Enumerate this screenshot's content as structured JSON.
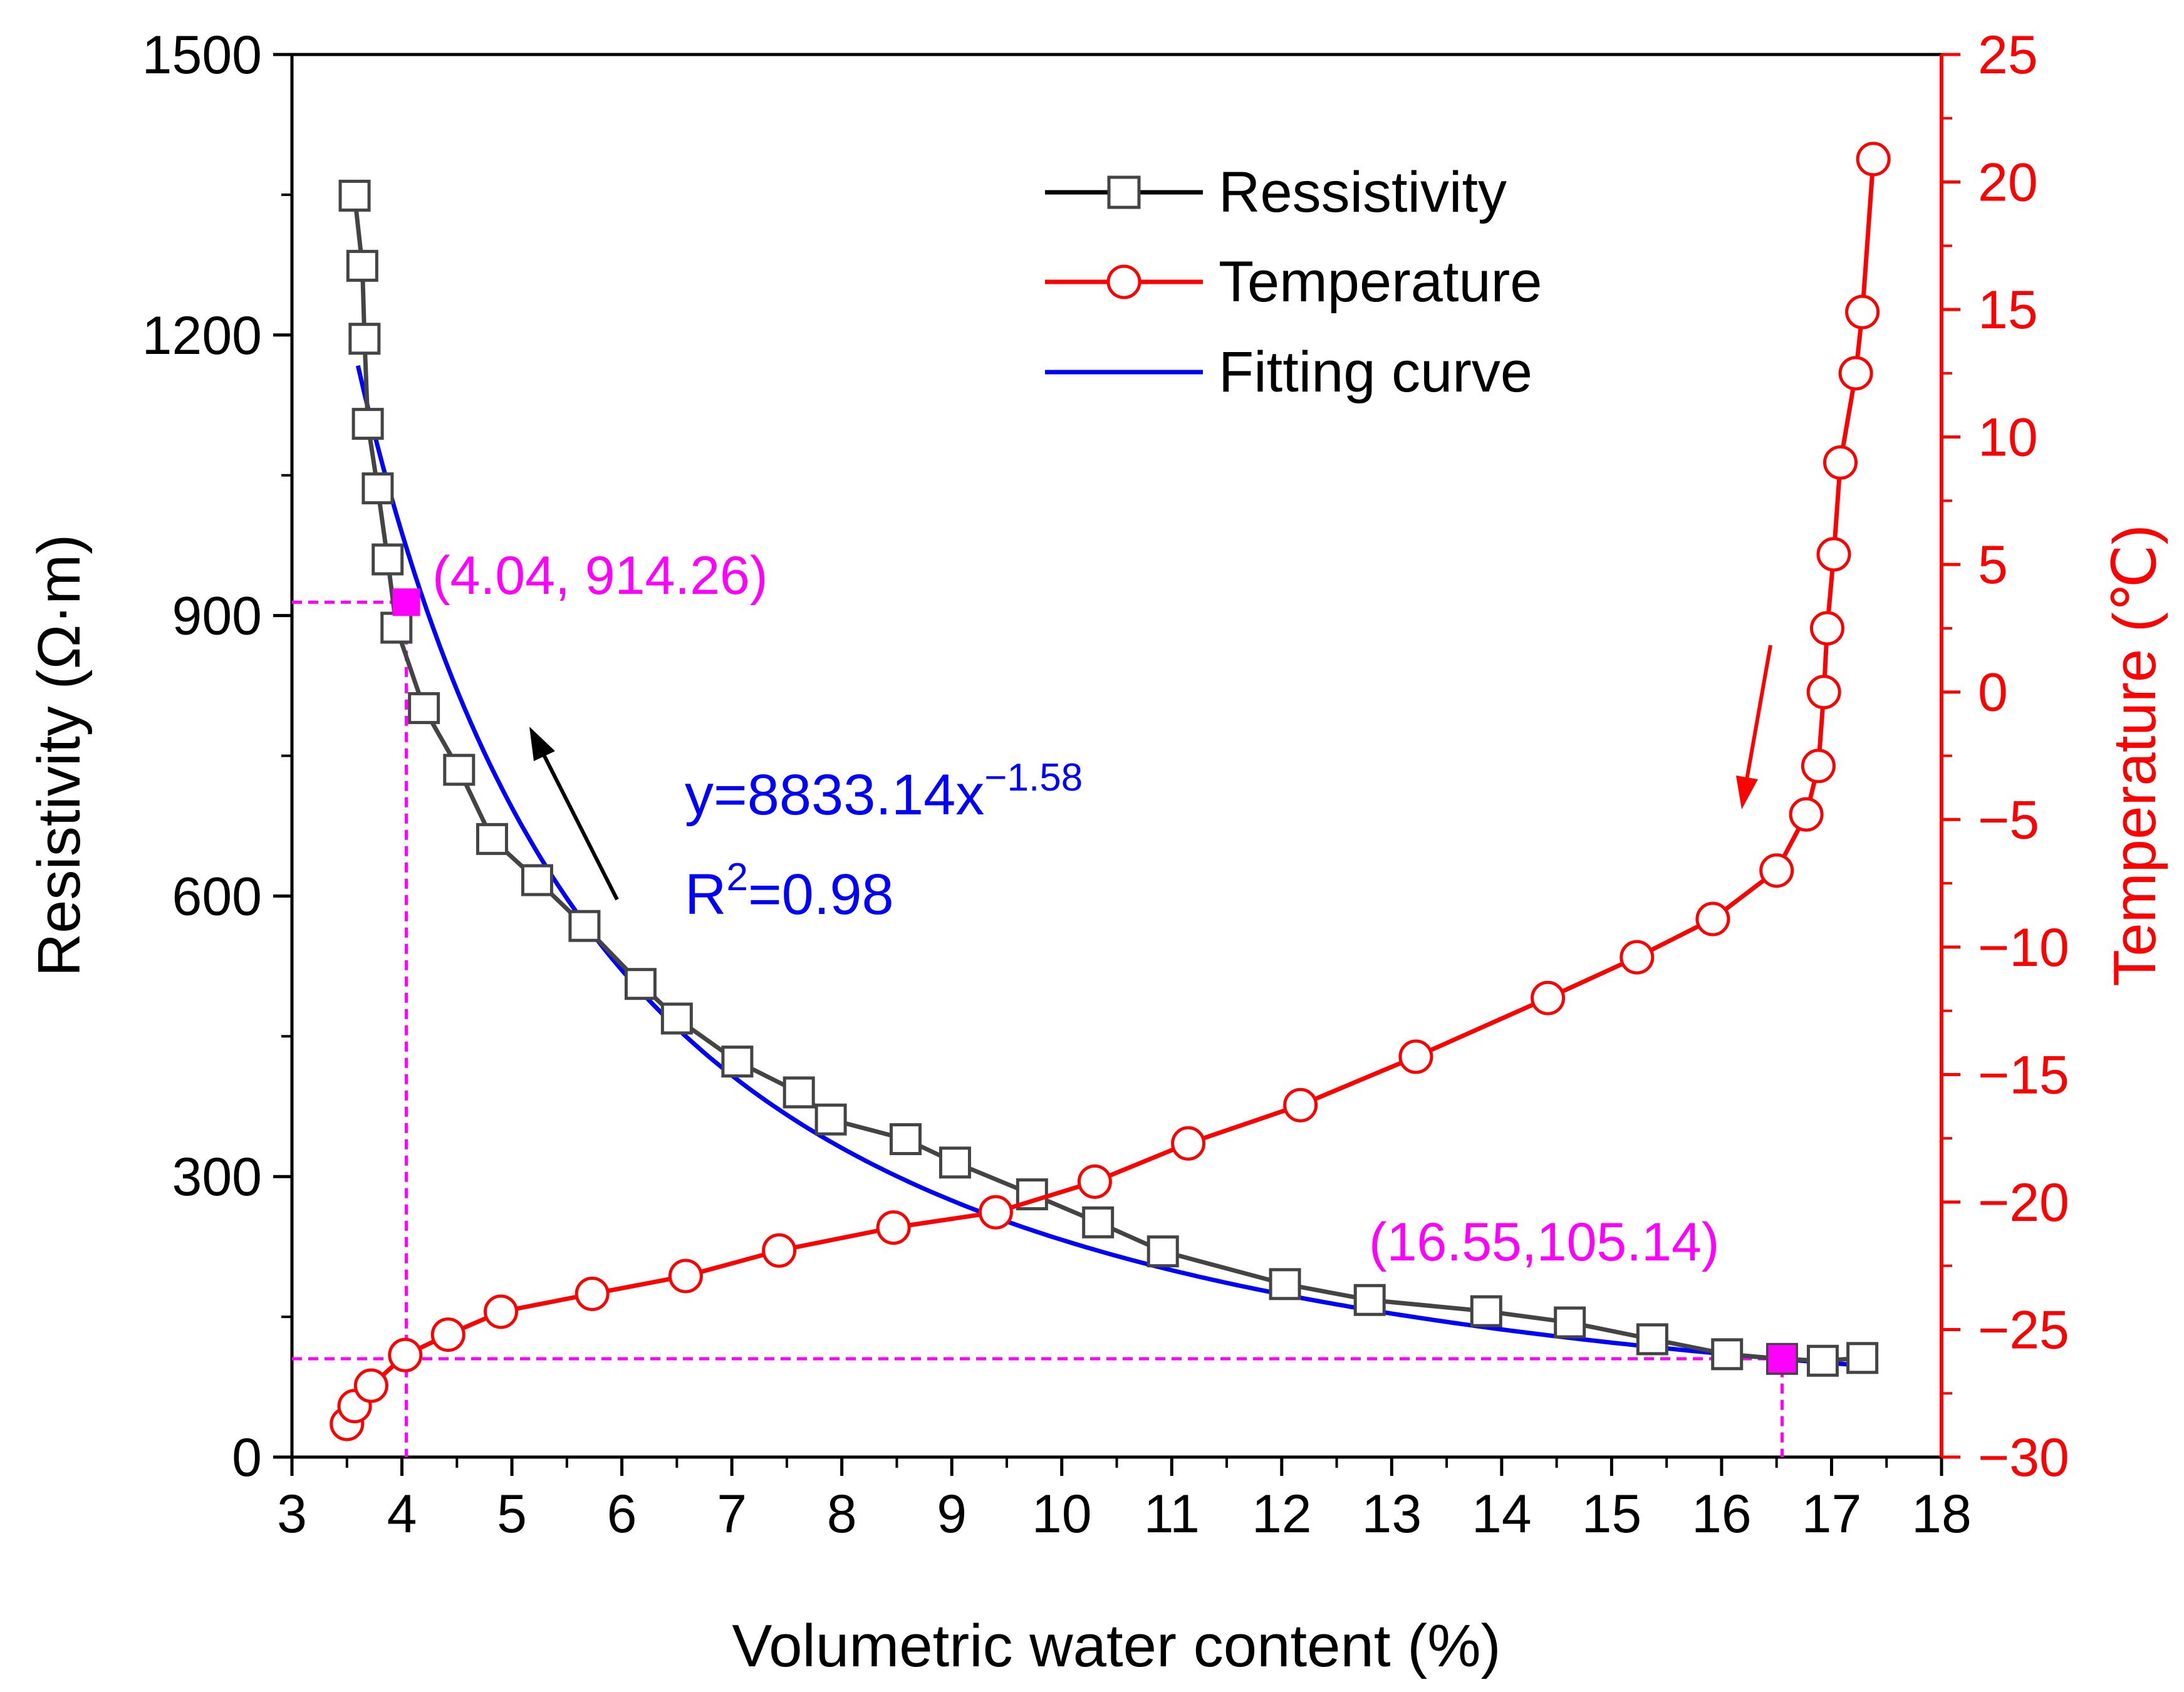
{
  "chart_data": {
    "type": "line",
    "xlabel": "Volumetric water content (%)",
    "ylabel_left": "Resistivity (Ω·m)",
    "ylabel_right": "Temperature (℃)",
    "xlim": [
      3,
      18
    ],
    "ylim_left": [
      0,
      1500
    ],
    "ylim_right": [
      -30,
      25
    ],
    "x_ticks": [
      "3",
      "4",
      "5",
      "6",
      "7",
      "8",
      "9",
      "10",
      "11",
      "12",
      "13",
      "14",
      "15",
      "16",
      "17",
      "18"
    ],
    "y_left_ticks": [
      "0",
      "300",
      "600",
      "900",
      "1200",
      "1500"
    ],
    "y_right_ticks": [
      "-30",
      "-25",
      "-20",
      "-15",
      "-10",
      "-5",
      "0",
      "5",
      "10",
      "15",
      "20",
      "25"
    ],
    "series": [
      {
        "name": "Ressistivity",
        "axis": "left",
        "color": "#000000",
        "line_color": "#444444",
        "marker": "square",
        "x": [
          3.57,
          3.64,
          3.66,
          3.69,
          3.78,
          3.87,
          3.95,
          4.2,
          4.52,
          4.82,
          5.23,
          5.66,
          6.17,
          6.5,
          7.05,
          7.61,
          7.9,
          8.58,
          9.03,
          9.73,
          10.33,
          10.92,
          12.03,
          12.8,
          13.86,
          14.62,
          15.37,
          16.05,
          16.55,
          16.92,
          17.28
        ],
        "y": [
          1349,
          1274,
          1196,
          1105,
          1036,
          960,
          887,
          801,
          735,
          661,
          617,
          568,
          506,
          469,
          423,
          390,
          361,
          340,
          315,
          281,
          251,
          220,
          185,
          168,
          156,
          144,
          126,
          110,
          105,
          103,
          106
        ]
      },
      {
        "name": "Temperature",
        "axis": "right",
        "color": "#ff0000",
        "marker": "circle",
        "x": [
          3.5,
          3.57,
          3.72,
          4.03,
          4.42,
          4.9,
          5.73,
          6.58,
          7.43,
          8.47,
          9.4,
          10.3,
          11.15,
          12.17,
          13.22,
          14.42,
          15.23,
          15.92,
          16.5,
          16.77,
          16.88,
          16.93,
          16.96,
          17.02,
          17.08,
          17.22,
          17.28,
          17.38
        ],
        "y": [
          -28.7,
          -28.0,
          -27.2,
          -26.0,
          -25.2,
          -24.3,
          -23.6,
          -22.9,
          -21.9,
          -21.0,
          -20.4,
          -19.2,
          -17.7,
          -16.2,
          -14.3,
          -12.0,
          -10.4,
          -8.9,
          -7.0,
          -4.8,
          -2.9,
          0.0,
          2.5,
          5.4,
          9.0,
          12.5,
          14.9,
          20.9
        ]
      },
      {
        "name": "Fitting curve",
        "axis": "left",
        "color": "#0000ff",
        "equation": "y=8833.14x^-1.58",
        "a": 8833.14,
        "b": -1.58,
        "x_range": [
          3.6,
          17.3
        ]
      }
    ],
    "annotations": [
      {
        "label": "(4.04, 914.26)",
        "x": 4.04,
        "y": 914.26,
        "color": "#ff00ff"
      },
      {
        "label": "(16.55,105.14)",
        "x": 16.55,
        "y": 105.14,
        "color": "#ff00ff"
      }
    ],
    "equation_text": {
      "lhs": "y=8833.14x",
      "exponent": "−1.58",
      "r_base": "R",
      "r_exp": "2",
      "r_rhs": "=0.98"
    },
    "legend_position": "top-right"
  }
}
